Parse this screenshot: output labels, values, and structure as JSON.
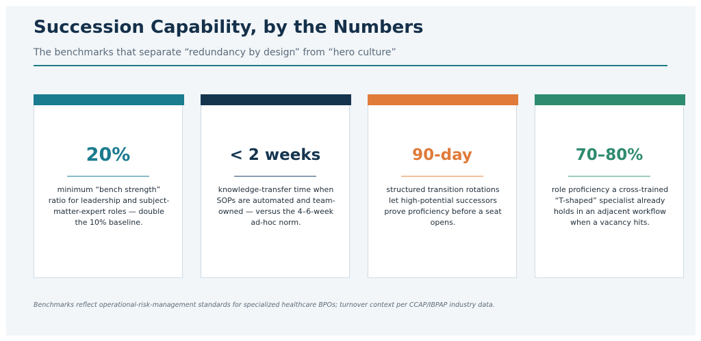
{
  "header": {
    "title": "Succession Capability, by the Numbers",
    "subtitle": "The benchmarks that separate “redundancy by design” from “hero culture”"
  },
  "colors": {
    "background": "#f2f6f9",
    "title": "#15304a",
    "rule": "#1b7b86"
  },
  "cards": [
    {
      "value": "20%",
      "description": "minimum “bench strength” ratio for leadership and subject-matter-expert roles — double the 10% baseline.",
      "accent_color": "#1b7b8f",
      "value_color": "#1b7b8f",
      "divider_color": "#86bccb"
    },
    {
      "value": "< 2 weeks",
      "description": "knowledge-transfer time when SOPs are automated and team-owned — versus the 4–6-week ad-hoc norm.",
      "accent_color": "#15354f",
      "value_color": "#15354f",
      "divider_color": "#8a9db0"
    },
    {
      "value": "90-day",
      "description": "structured transition rotations let high-potential successors prove proficiency before a seat opens.",
      "accent_color": "#e07b3a",
      "value_color": "#e07b3a",
      "divider_color": "#f0c09c"
    },
    {
      "value": "70–80%",
      "description": "role proficiency a cross-trained “T-shaped” specialist already holds in an adjacent workflow when a vacancy hits.",
      "accent_color": "#2e8b6f",
      "value_color": "#2e8b6f",
      "divider_color": "#9cccbb"
    }
  ],
  "footnote": "Benchmarks reflect operational-risk-management standards for specialized healthcare BPOs; turnover context per CCAP/IBPAP industry data."
}
